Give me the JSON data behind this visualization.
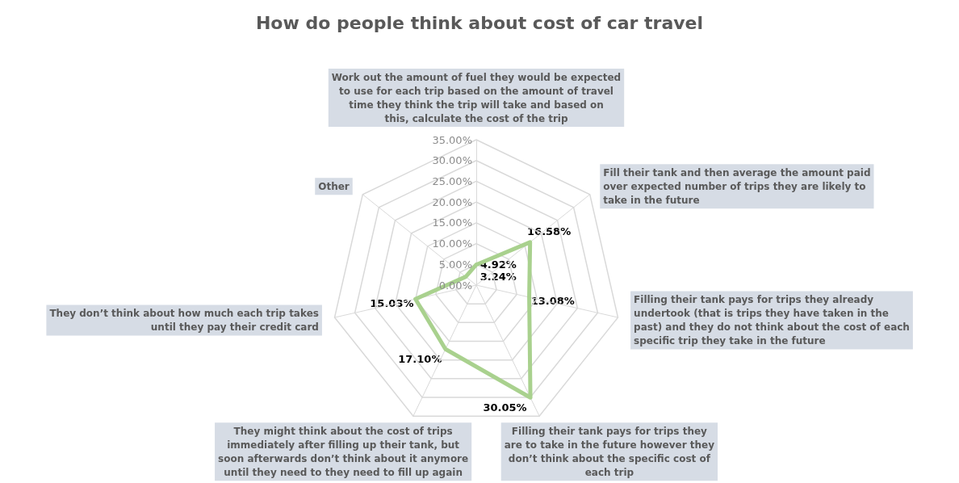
{
  "chart_data": {
    "type": "radar",
    "title": "How do people think about cost of car travel",
    "categories": [
      "Work out the amount of fuel they would be expected to use for each trip based on the amount of travel time they think the trip will take and based on this, calculate the cost of the trip",
      "Fill their tank and then average the amount paid over expected number of trips they are likely to take in the future",
      "Filling their tank pays for trips they already undertook (that is trips they have taken in the past) and they do not think about the cost of each specific trip they take in the future",
      "Filling their tank pays for trips they are to take in the future however they don’t think about the specific cost of each trip",
      "They might think about the cost of trips immediately after filling up their tank, but soon afterwards don’t think about it anymore until they need to they need to fill up again",
      "They don’t think about how much each trip takes until they pay their credit card",
      "Other"
    ],
    "series": [
      {
        "color": "#a9d18e",
        "values": [
          4.92,
          16.58,
          13.08,
          30.05,
          17.1,
          15.03,
          3.24
        ],
        "value_labels": [
          "4.92%",
          "16.58%",
          "13.08%",
          "30.05%",
          "17.10%",
          "15.03%",
          "3.24%"
        ]
      }
    ],
    "ylim": [
      0,
      35
    ],
    "yticks": [
      {
        "value": 0,
        "label": "0.00%"
      },
      {
        "value": 5,
        "label": "5.00%"
      },
      {
        "value": 10,
        "label": "10.00%"
      },
      {
        "value": 15,
        "label": "15.00%"
      },
      {
        "value": 20,
        "label": "20.00%"
      },
      {
        "value": 25,
        "label": "25.00%"
      },
      {
        "value": 30,
        "label": "30.00%"
      },
      {
        "value": 35,
        "label": "35.00%"
      }
    ],
    "grid": true,
    "marker": "none",
    "line_style": "solid"
  }
}
